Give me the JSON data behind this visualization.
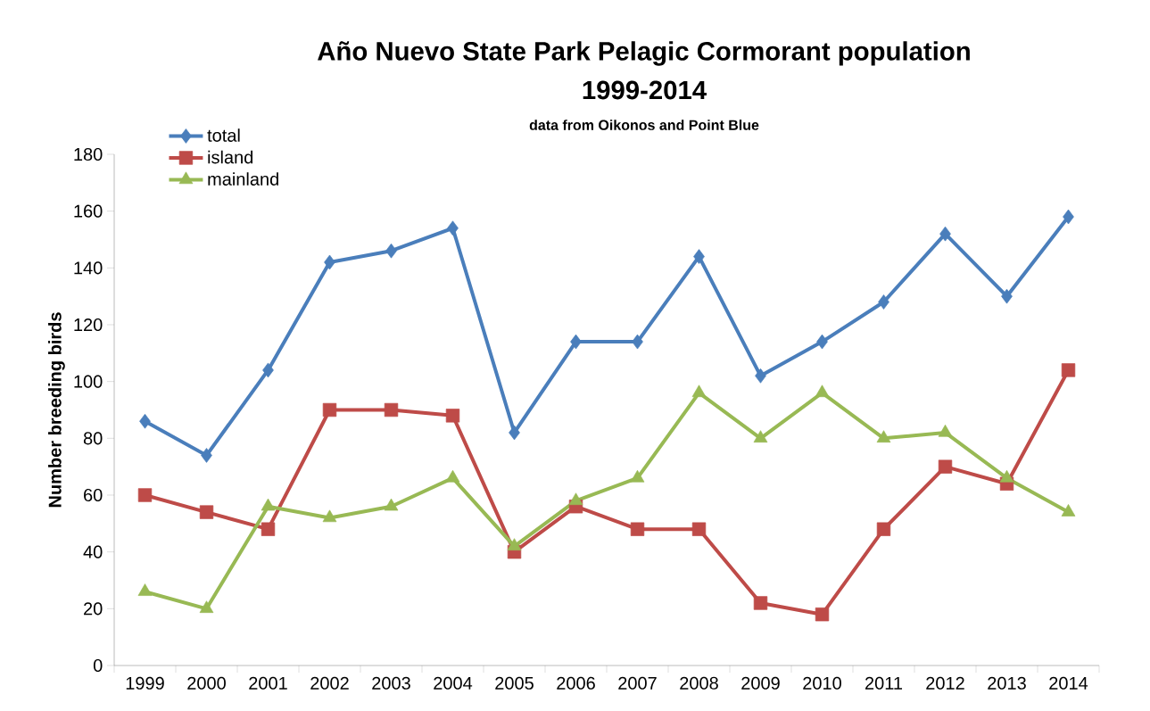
{
  "chart_data": {
    "type": "line",
    "title": "Año Nuevo State Park Pelagic Cormorant population",
    "subtitle": "1999-2014",
    "annotations": [
      "data from Oikonos and Point Blue"
    ],
    "ylabel": "Number breeding birds",
    "categories": [
      "1999",
      "2000",
      "2001",
      "2002",
      "2003",
      "2004",
      "2005",
      "2006",
      "2007",
      "2008",
      "2009",
      "2010",
      "2011",
      "2012",
      "2013",
      "2014"
    ],
    "series": [
      {
        "name": "total",
        "color": "#4a7ebb",
        "marker": "diamond",
        "values": [
          86,
          74,
          104,
          142,
          146,
          154,
          82,
          114,
          114,
          144,
          102,
          114,
          128,
          152,
          130,
          158
        ]
      },
      {
        "name": "island",
        "color": "#be4b48",
        "marker": "square",
        "values": [
          60,
          54,
          48,
          90,
          90,
          88,
          40,
          56,
          48,
          48,
          22,
          18,
          48,
          70,
          64,
          104
        ]
      },
      {
        "name": "mainland",
        "color": "#98b954",
        "marker": "triangle",
        "values": [
          26,
          20,
          56,
          52,
          56,
          66,
          42,
          58,
          66,
          96,
          80,
          96,
          80,
          82,
          66,
          54
        ]
      }
    ],
    "ylim": [
      0,
      180
    ],
    "yticks": [
      0,
      20,
      40,
      60,
      80,
      100,
      120,
      140,
      160,
      180
    ],
    "grid": false,
    "legend": "top left",
    "line_style": "solid"
  }
}
